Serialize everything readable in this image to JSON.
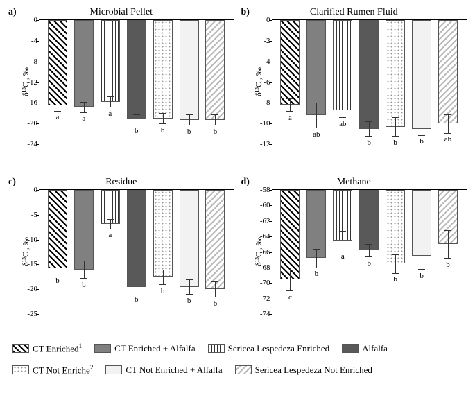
{
  "legend": {
    "items": [
      {
        "label": "CT Enriched",
        "sup": "1",
        "fill": "fill-diag-black"
      },
      {
        "label": "CT Enriched + Alfalfa",
        "sup": "",
        "fill": "fill-solid-grey"
      },
      {
        "label": "Sericea Lespedeza Enriched",
        "sup": "",
        "fill": "fill-vert"
      },
      {
        "label": "Alfalfa",
        "sup": "",
        "fill": "fill-solid-dark"
      },
      {
        "label": "CT Not Enriche",
        "sup": "2",
        "fill": "fill-dots"
      },
      {
        "label": "CT Not Enriched + Alfalfa",
        "sup": "",
        "fill": "fill-solid-light"
      },
      {
        "label": "Sericea Lespedeza Not Enriched",
        "sup": "",
        "fill": "fill-diag-grey"
      }
    ]
  },
  "series_fills": [
    "fill-diag-black",
    "fill-solid-grey",
    "fill-vert",
    "fill-solid-dark",
    "fill-dots",
    "fill-solid-light",
    "fill-diag-grey"
  ],
  "ylabel": "δ¹³C , ‰",
  "panels": [
    {
      "letter": "a)",
      "title": "Microbial Pellet",
      "ymin": -24,
      "ymax": 0,
      "ystep": 4,
      "values": [
        -16.5,
        -16.8,
        -15.8,
        -19.2,
        -19.0,
        -19.3,
        -19.3
      ],
      "errors": [
        1.0,
        1.0,
        1.0,
        1.0,
        1.0,
        1.0,
        1.0
      ],
      "labels": [
        "a",
        "a",
        "a",
        "b",
        "b",
        "b",
        "b"
      ]
    },
    {
      "letter": "b)",
      "title": "Clarified Rumen Fluid",
      "ymin": -12,
      "ymax": 0,
      "ystep": 2,
      "values": [
        -8.2,
        -9.2,
        -8.7,
        -10.5,
        -10.3,
        -10.5,
        -10.0
      ],
      "errors": [
        0.6,
        1.2,
        0.7,
        0.7,
        0.9,
        0.6,
        0.9
      ],
      "labels": [
        "a",
        "ab",
        "ab",
        "b",
        "b",
        "b",
        "ab"
      ]
    },
    {
      "letter": "c)",
      "title": "Residue",
      "ymin": -25,
      "ymax": 0,
      "ystep": 5,
      "values": [
        -15.8,
        -16.0,
        -6.8,
        -19.5,
        -17.5,
        -19.5,
        -20.0
      ],
      "errors": [
        1.2,
        1.8,
        1.0,
        1.2,
        1.5,
        1.5,
        1.5
      ],
      "labels": [
        "b",
        "b",
        "a",
        "b",
        "b",
        "b",
        "b"
      ]
    },
    {
      "letter": "d)",
      "title": "Methane",
      "ymin": -74,
      "ymax": -58,
      "ystep": 2,
      "values": [
        -69.5,
        -66.8,
        -64.5,
        -65.8,
        -67.5,
        -66.5,
        -65.0
      ],
      "errors": [
        1.5,
        1.2,
        1.2,
        0.8,
        1.2,
        1.7,
        1.8
      ],
      "labels": [
        "c",
        "b",
        "a",
        "b",
        "b",
        "b",
        "b"
      ]
    }
  ]
}
